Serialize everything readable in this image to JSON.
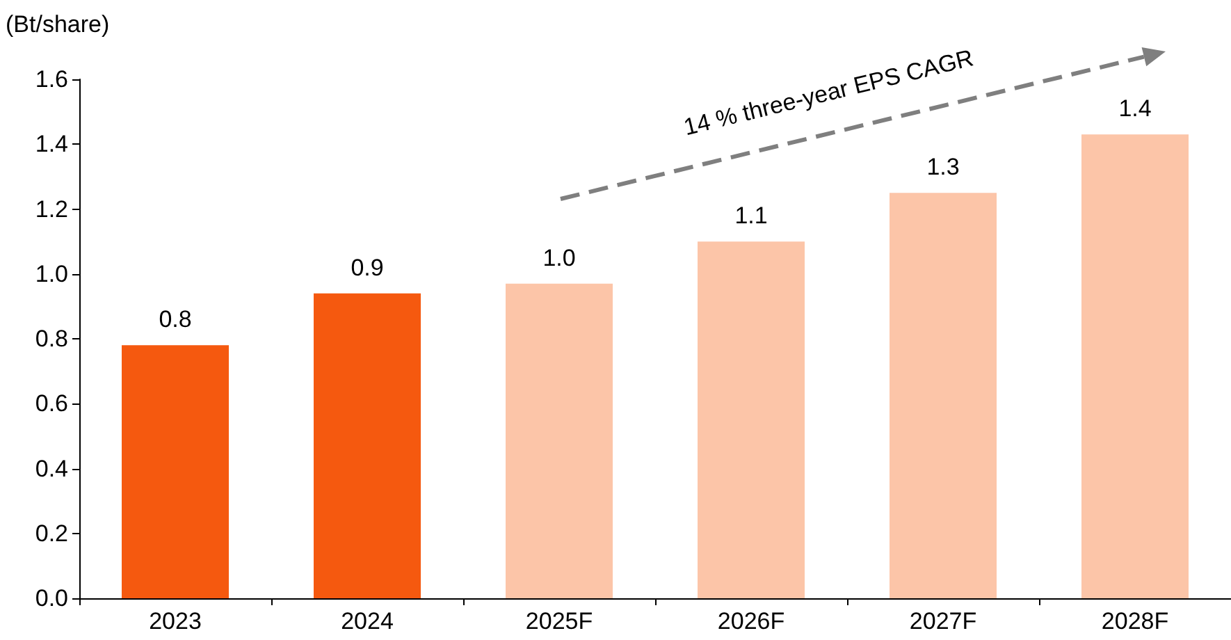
{
  "chart_data": {
    "type": "bar",
    "ylabel": "(Bt/share)",
    "categories": [
      "2023",
      "2024",
      "2025F",
      "2026F",
      "2027F",
      "2028F"
    ],
    "values": [
      0.78,
      0.94,
      0.97,
      1.1,
      1.25,
      1.43
    ],
    "value_labels": [
      "0.8",
      "0.9",
      "1.0",
      "1.1",
      "1.3",
      "1.4"
    ],
    "colors": [
      "#f5590f",
      "#f5590f",
      "#fcc5a8",
      "#fcc5a8",
      "#fcc5a8",
      "#fcc5a8"
    ],
    "ylim": [
      0,
      1.6
    ],
    "yticks": [
      {
        "value": 0,
        "label": "0.0"
      },
      {
        "value": 0.2,
        "label": "0.2"
      },
      {
        "value": 0.4,
        "label": "0.4"
      },
      {
        "value": 0.6,
        "label": "0.6"
      },
      {
        "value": 0.8,
        "label": "0.8"
      },
      {
        "value": 1,
        "label": "1.0"
      },
      {
        "value": 1.2,
        "label": "1.2"
      },
      {
        "value": 1.4,
        "label": "1.4"
      },
      {
        "value": 1.6,
        "label": "1.6"
      }
    ],
    "grid": false,
    "annotations": [
      "14 % three-year EPS CAGR"
    ]
  }
}
